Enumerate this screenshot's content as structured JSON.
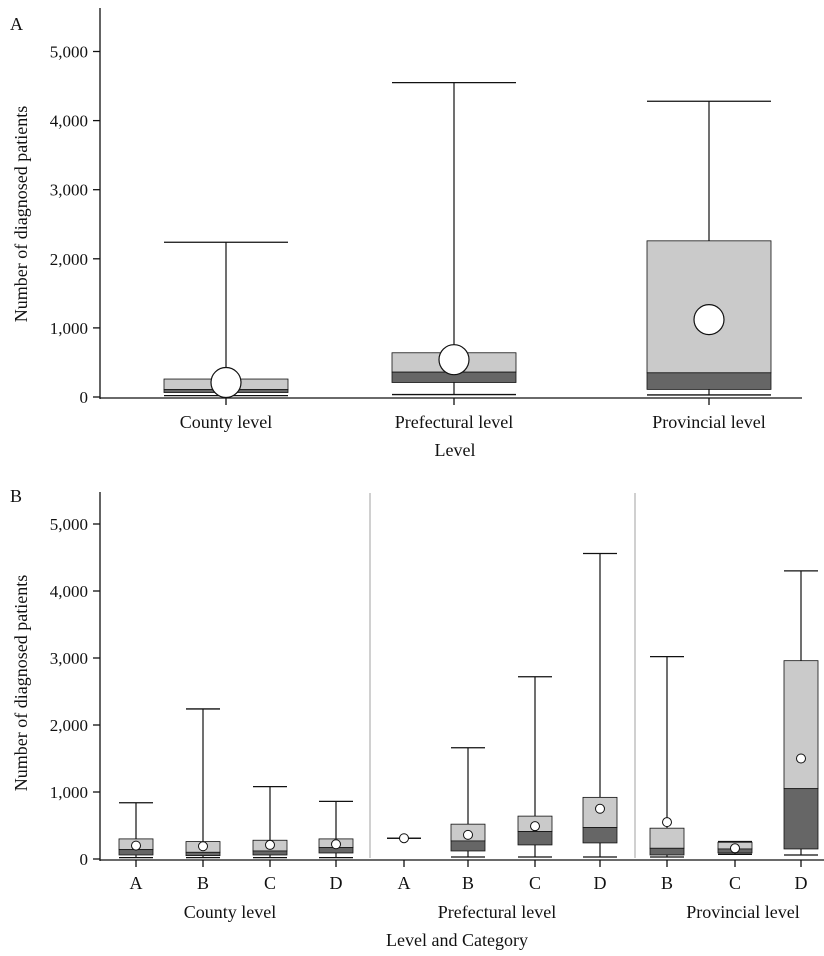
{
  "colors": {
    "q3_box": "#cacaca",
    "q1_box": "#666666",
    "line": "#111111",
    "mean_fill": "#ffffff",
    "divider": "#b0b0b0"
  },
  "chart_data": [
    {
      "type": "box",
      "panel_label": "A",
      "xlabel": "Level",
      "ylabel": "Number of diagnosed patients",
      "ylim": [
        0,
        5400
      ],
      "yticks": [
        0,
        1000,
        2000,
        3000,
        4000,
        5000
      ],
      "ytick_labels": [
        "0",
        "1,000",
        "2,000",
        "3,000",
        "4,000",
        "5,000"
      ],
      "categories": [
        "County level",
        "Prefectural level",
        "Provincial level"
      ],
      "boxes": [
        {
          "min": 20,
          "q1": 65,
          "median": 110,
          "q3": 260,
          "max": 2240,
          "mean": 210
        },
        {
          "min": 35,
          "q1": 210,
          "median": 360,
          "q3": 640,
          "max": 4550,
          "mean": 540
        },
        {
          "min": 30,
          "q1": 110,
          "median": 350,
          "q3": 2260,
          "max": 4280,
          "mean": 1120
        }
      ],
      "mean_marker": "large"
    },
    {
      "type": "box",
      "panel_label": "B",
      "xlabel": "Level and Category",
      "ylabel": "Number of diagnosed patients",
      "ylim": [
        0,
        5400
      ],
      "yticks": [
        0,
        1000,
        2000,
        3000,
        4000,
        5000
      ],
      "ytick_labels": [
        "0",
        "1,000",
        "2,000",
        "3,000",
        "4,000",
        "5,000"
      ],
      "groups": [
        {
          "label": "County level",
          "categories": [
            "A",
            "B",
            "C",
            "D"
          ],
          "boxes": [
            {
              "min": 20,
              "q1": 60,
              "median": 140,
              "q3": 300,
              "max": 840,
              "mean": 200
            },
            {
              "min": 20,
              "q1": 50,
              "median": 100,
              "q3": 260,
              "max": 2240,
              "mean": 190
            },
            {
              "min": 20,
              "q1": 60,
              "median": 120,
              "q3": 280,
              "max": 1080,
              "mean": 210
            },
            {
              "min": 20,
              "q1": 90,
              "median": 170,
              "q3": 300,
              "max": 860,
              "mean": 220
            }
          ]
        },
        {
          "label": "Prefectural level",
          "categories": [
            "A",
            "B",
            "C",
            "D"
          ],
          "boxes": [
            {
              "min": 310,
              "q1": 310,
              "median": 310,
              "q3": 310,
              "max": 310,
              "mean": 310
            },
            {
              "min": 30,
              "q1": 120,
              "median": 270,
              "q3": 520,
              "max": 1660,
              "mean": 360
            },
            {
              "min": 30,
              "q1": 210,
              "median": 410,
              "q3": 640,
              "max": 2720,
              "mean": 490
            },
            {
              "min": 30,
              "q1": 240,
              "median": 470,
              "q3": 920,
              "max": 4560,
              "mean": 750
            }
          ]
        },
        {
          "label": "Provincial level",
          "categories": [
            "B",
            "C",
            "D"
          ],
          "boxes": [
            {
              "min": 30,
              "q1": 60,
              "median": 160,
              "q3": 460,
              "max": 3020,
              "mean": 550
            },
            {
              "min": 70,
              "q1": 90,
              "median": 150,
              "q3": 250,
              "max": 260,
              "mean": 160
            },
            {
              "min": 60,
              "q1": 150,
              "median": 1050,
              "q3": 2960,
              "max": 4300,
              "mean": 1500
            }
          ]
        }
      ],
      "mean_marker": "small"
    }
  ]
}
